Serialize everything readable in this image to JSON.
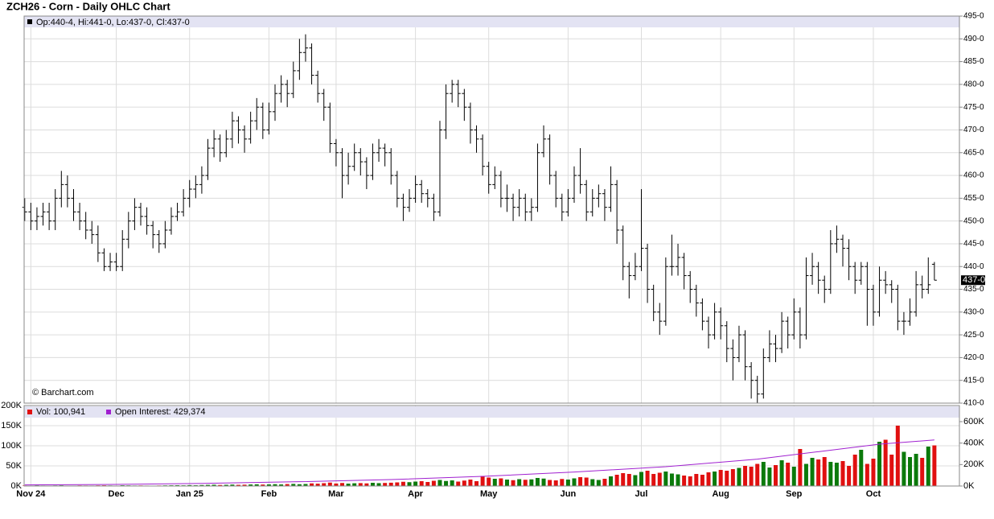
{
  "chart_data": {
    "type": "ohlc",
    "title": "ZCH26 - Corn - Daily OHLC Chart",
    "legend_text": "Op:440-4, Hi:441-0, Lo:437-0, Cl:437-0",
    "watermark": "© Barchart.com",
    "color": "#000000",
    "xlim": [
      -0.1,
      153.1
    ],
    "xticks": [
      {
        "value": 1,
        "label": "Nov 24"
      },
      {
        "value": 15,
        "label": "Dec"
      },
      {
        "value": 27,
        "label": "Jan 25"
      },
      {
        "value": 40,
        "label": "Feb"
      },
      {
        "value": 51,
        "label": "Mar"
      },
      {
        "value": 64,
        "label": "Apr"
      },
      {
        "value": 76,
        "label": "May"
      },
      {
        "value": 89,
        "label": "Jun"
      },
      {
        "value": 101,
        "label": "Jul"
      },
      {
        "value": 114,
        "label": "Aug"
      },
      {
        "value": 126,
        "label": "Sep"
      },
      {
        "value": 139,
        "label": "Oct"
      }
    ],
    "ylim": [
      410,
      495
    ],
    "yticks": [
      {
        "value": 410,
        "label": "410-0"
      },
      {
        "value": 415,
        "label": "415-0"
      },
      {
        "value": 420,
        "label": "420-0"
      },
      {
        "value": 425,
        "label": "425-0"
      },
      {
        "value": 430,
        "label": "430-0"
      },
      {
        "value": 435,
        "label": "435-0"
      },
      {
        "value": 440,
        "label": "440-0"
      },
      {
        "value": 445,
        "label": "445-0"
      },
      {
        "value": 450,
        "label": "450-0"
      },
      {
        "value": 455,
        "label": "455-0"
      },
      {
        "value": 460,
        "label": "460-0"
      },
      {
        "value": 465,
        "label": "465-0"
      },
      {
        "value": 470,
        "label": "470-0"
      },
      {
        "value": 475,
        "label": "475-0"
      },
      {
        "value": 480,
        "label": "480-0"
      },
      {
        "value": 485,
        "label": "485-0"
      },
      {
        "value": 490,
        "label": "490-0"
      },
      {
        "value": 495,
        "label": "495-0"
      }
    ],
    "last_price": {
      "value": 437,
      "label": "437-0"
    },
    "ohlc": [
      [
        453,
        455,
        450,
        452
      ],
      [
        452,
        454,
        448,
        450
      ],
      [
        450,
        453,
        448,
        451
      ],
      [
        451,
        454,
        449,
        452
      ],
      [
        452,
        454,
        448,
        450
      ],
      [
        450,
        457,
        448,
        455
      ],
      [
        455,
        461,
        453,
        458
      ],
      [
        458,
        460,
        453,
        455
      ],
      [
        455,
        457,
        450,
        452
      ],
      [
        452,
        454,
        448,
        450
      ],
      [
        450,
        452,
        446,
        448
      ],
      [
        448,
        450,
        445,
        447
      ],
      [
        447,
        449,
        441,
        443
      ],
      [
        443,
        444,
        439,
        440
      ],
      [
        440,
        443,
        439,
        441
      ],
      [
        441,
        443,
        439,
        440
      ],
      [
        440,
        448,
        439,
        446
      ],
      [
        446,
        452,
        444,
        450
      ],
      [
        450,
        455,
        448,
        453
      ],
      [
        453,
        454,
        449,
        451
      ],
      [
        451,
        453,
        447,
        449
      ],
      [
        449,
        450,
        444,
        447
      ],
      [
        447,
        448,
        443,
        445
      ],
      [
        445,
        450,
        444,
        448
      ],
      [
        448,
        453,
        447,
        451
      ],
      [
        451,
        454,
        450,
        452
      ],
      [
        452,
        457,
        451,
        455
      ],
      [
        455,
        459,
        453,
        457
      ],
      [
        457,
        460,
        455,
        458
      ],
      [
        458,
        462,
        456,
        460
      ],
      [
        460,
        468,
        459,
        466
      ],
      [
        466,
        470,
        464,
        468
      ],
      [
        468,
        469,
        463,
        465
      ],
      [
        465,
        470,
        464,
        468
      ],
      [
        468,
        474,
        466,
        472
      ],
      [
        472,
        473,
        467,
        470
      ],
      [
        470,
        471,
        465,
        468
      ],
      [
        468,
        474,
        467,
        472
      ],
      [
        472,
        477,
        470,
        475
      ],
      [
        475,
        476,
        468,
        470
      ],
      [
        470,
        476,
        469,
        474
      ],
      [
        474,
        480,
        472,
        478
      ],
      [
        478,
        482,
        476,
        480
      ],
      [
        480,
        481,
        475,
        478
      ],
      [
        478,
        485,
        477,
        483
      ],
      [
        483,
        490,
        481,
        487
      ],
      [
        487,
        491,
        485,
        488
      ],
      [
        488,
        489,
        480,
        482
      ],
      [
        482,
        483,
        476,
        478
      ],
      [
        478,
        479,
        472,
        475
      ],
      [
        475,
        476,
        465,
        467
      ],
      [
        467,
        468,
        462,
        465
      ],
      [
        465,
        466,
        455,
        460
      ],
      [
        460,
        465,
        458,
        462
      ],
      [
        462,
        467,
        461,
        465
      ],
      [
        465,
        466,
        460,
        463
      ],
      [
        463,
        464,
        457,
        460
      ],
      [
        460,
        467,
        459,
        465
      ],
      [
        465,
        468,
        463,
        466
      ],
      [
        466,
        467,
        462,
        465
      ],
      [
        465,
        466,
        458,
        460
      ],
      [
        460,
        461,
        453,
        455
      ],
      [
        455,
        456,
        450,
        453
      ],
      [
        453,
        457,
        452,
        455
      ],
      [
        455,
        460,
        454,
        458
      ],
      [
        458,
        459,
        454,
        456
      ],
      [
        456,
        457,
        453,
        455
      ],
      [
        455,
        456,
        450,
        452
      ],
      [
        452,
        472,
        451,
        470
      ],
      [
        470,
        480,
        468,
        478
      ],
      [
        478,
        481,
        476,
        480
      ],
      [
        480,
        481,
        475,
        478
      ],
      [
        478,
        479,
        472,
        475
      ],
      [
        475,
        476,
        467,
        470
      ],
      [
        470,
        471,
        465,
        468
      ],
      [
        468,
        469,
        460,
        462
      ],
      [
        462,
        463,
        456,
        458
      ],
      [
        458,
        462,
        457,
        460
      ],
      [
        460,
        461,
        453,
        455
      ],
      [
        455,
        458,
        452,
        455
      ],
      [
        455,
        456,
        450,
        453
      ],
      [
        453,
        457,
        451,
        455
      ],
      [
        455,
        456,
        450,
        452
      ],
      [
        452,
        455,
        450,
        453
      ],
      [
        453,
        467,
        452,
        465
      ],
      [
        465,
        471,
        464,
        468
      ],
      [
        468,
        469,
        458,
        460
      ],
      [
        460,
        461,
        453,
        455
      ],
      [
        455,
        456,
        450,
        452
      ],
      [
        452,
        457,
        451,
        455
      ],
      [
        455,
        462,
        454,
        460
      ],
      [
        460,
        466,
        456,
        458
      ],
      [
        458,
        459,
        450,
        452
      ],
      [
        452,
        457,
        451,
        455
      ],
      [
        455,
        458,
        453,
        456
      ],
      [
        456,
        457,
        450,
        453
      ],
      [
        453,
        462,
        452,
        458
      ],
      [
        458,
        459,
        445,
        448
      ],
      [
        448,
        449,
        437,
        440
      ],
      [
        440,
        441,
        433,
        438
      ],
      [
        438,
        443,
        437,
        440
      ],
      [
        440,
        457,
        439,
        444
      ],
      [
        444,
        445,
        432,
        435
      ],
      [
        435,
        436,
        428,
        430
      ],
      [
        430,
        432,
        425,
        428
      ],
      [
        428,
        442,
        427,
        440
      ],
      [
        440,
        447,
        438,
        440
      ],
      [
        440,
        445,
        438,
        442
      ],
      [
        442,
        443,
        435,
        438
      ],
      [
        438,
        439,
        432,
        435
      ],
      [
        435,
        436,
        429,
        432
      ],
      [
        432,
        433,
        426,
        428
      ],
      [
        428,
        429,
        422,
        425
      ],
      [
        425,
        432,
        424,
        430
      ],
      [
        430,
        431,
        424,
        427
      ],
      [
        427,
        428,
        419,
        422
      ],
      [
        422,
        424,
        415,
        420
      ],
      [
        420,
        427,
        419,
        425
      ],
      [
        425,
        426,
        415,
        418
      ],
      [
        418,
        419,
        411,
        415
      ],
      [
        415,
        416,
        410,
        412
      ],
      [
        412,
        422,
        411,
        420
      ],
      [
        420,
        426,
        419,
        423
      ],
      [
        423,
        425,
        419,
        422
      ],
      [
        422,
        430,
        421,
        428
      ],
      [
        428,
        429,
        422,
        425
      ],
      [
        425,
        433,
        424,
        430
      ],
      [
        430,
        431,
        422,
        425
      ],
      [
        425,
        442,
        424,
        438
      ],
      [
        438,
        443,
        436,
        440
      ],
      [
        440,
        441,
        434,
        437
      ],
      [
        437,
        438,
        432,
        435
      ],
      [
        435,
        448,
        434,
        445
      ],
      [
        445,
        449,
        443,
        446
      ],
      [
        446,
        447,
        440,
        444
      ],
      [
        444,
        446,
        437,
        440
      ],
      [
        440,
        441,
        434,
        437
      ],
      [
        437,
        441,
        436,
        440
      ],
      [
        440,
        441,
        427,
        435
      ],
      [
        435,
        436,
        427,
        430
      ],
      [
        430,
        440,
        429,
        437
      ],
      [
        437,
        439,
        434,
        436
      ],
      [
        436,
        437,
        432,
        435
      ],
      [
        435,
        436,
        426,
        428
      ],
      [
        428,
        430,
        425,
        428
      ],
      [
        428,
        433,
        427,
        430
      ],
      [
        430,
        439,
        429,
        436
      ],
      [
        436,
        438,
        433,
        435
      ],
      [
        435,
        442,
        434,
        436
      ],
      [
        440.5,
        441,
        437,
        437
      ]
    ],
    "volume": {
      "legend": "Vol: 100,941",
      "up_color": "#0b7a0b",
      "down_color": "#e01010",
      "ylim": [
        0,
        200000
      ],
      "yticks": [
        {
          "value": 0,
          "label": "0K"
        },
        {
          "value": 50000,
          "label": "50K"
        },
        {
          "value": 100000,
          "label": "100K"
        },
        {
          "value": 150000,
          "label": "150K"
        },
        {
          "value": 200000,
          "label": "200K"
        }
      ],
      "values": [
        1200,
        900,
        1500,
        1100,
        800,
        1300,
        1600,
        1000,
        900,
        1400,
        1200,
        1100,
        1500,
        1700,
        1300,
        1000,
        1800,
        1500,
        1200,
        1400,
        1100,
        900,
        1300,
        1600,
        1800,
        2000,
        1700,
        2200,
        1900,
        2400,
        2800,
        3200,
        2600,
        3000,
        3500,
        2900,
        3300,
        3800,
        4200,
        3600,
        4000,
        4500,
        3900,
        4800,
        5200,
        4400,
        5000,
        6500,
        5800,
        7000,
        8500,
        6200,
        7500,
        5900,
        6800,
        7200,
        6500,
        8000,
        7100,
        7600,
        8200,
        9000,
        10500,
        9500,
        11000,
        12000,
        10000,
        13000,
        15000,
        12500,
        14000,
        11000,
        13500,
        16000,
        12000,
        25000,
        21000,
        18000,
        19000,
        16000,
        14500,
        17000,
        15500,
        16500,
        20000,
        18500,
        15000,
        14000,
        17500,
        16000,
        19000,
        22000,
        21000,
        17000,
        15000,
        18000,
        24000,
        28000,
        32000,
        30000,
        27000,
        35000,
        38000,
        30000,
        33000,
        36000,
        31000,
        29000,
        26000,
        24000,
        30000,
        28000,
        34000,
        36000,
        40000,
        38000,
        42000,
        45000,
        50000,
        48000,
        55000,
        60000,
        46000,
        52000,
        64000,
        58000,
        48000,
        92000,
        55000,
        70000,
        66000,
        72000,
        60000,
        58000,
        62000,
        50000,
        78000,
        90000,
        55000,
        68000,
        110000,
        115000,
        78000,
        150000,
        85000,
        72000,
        80000,
        70000,
        98000,
        100941
      ]
    },
    "open_interest": {
      "legend": "Open Interest: 429,374",
      "color": "#a020d0",
      "y2lim": [
        0,
        750000
      ],
      "y2ticks": [
        {
          "value": 0,
          "label": "0K"
        },
        {
          "value": 200000,
          "label": "200K"
        },
        {
          "value": 400000,
          "label": "400K"
        },
        {
          "value": 600000,
          "label": "600K"
        }
      ],
      "x": [
        0,
        15,
        30,
        45,
        60,
        75,
        90,
        105,
        120,
        130,
        140,
        149
      ],
      "values": [
        10000,
        15000,
        25000,
        40000,
        60000,
        90000,
        130000,
        180000,
        250000,
        320000,
        390000,
        429374
      ]
    }
  }
}
